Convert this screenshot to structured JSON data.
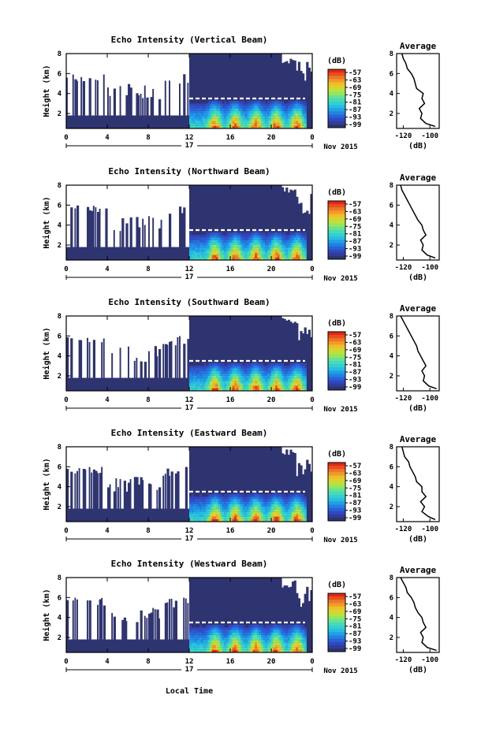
{
  "chart_data": [
    {
      "type": "heatmap",
      "title": "Echo Intensity (Vertical Beam)",
      "ylabel": "Height (km)",
      "x_ticks": [
        "0",
        "4",
        "8",
        "12",
        "16",
        "20",
        "0"
      ],
      "y_ticks": [
        "8",
        "6",
        "4",
        "2"
      ],
      "date_label": "17",
      "month_label": "Nov 2015",
      "colorbar": {
        "unit": "(dB)",
        "ticks": [
          "-57",
          "-63",
          "-69",
          "-75",
          "-81",
          "-87",
          "-93",
          "-99"
        ]
      },
      "xlim": [
        0,
        24
      ],
      "ylim": [
        0.5,
        8
      ],
      "layer_height_km": 3.5,
      "profile": {
        "title": "Average",
        "xlabel": "(dB)",
        "x_ticks": [
          "-120",
          "-100"
        ],
        "y_ticks": [
          "8",
          "6",
          "4",
          "2"
        ],
        "xlim": [
          -125,
          -93
        ],
        "ylim": [
          0.5,
          8
        ],
        "height": [
          0.7,
          1.0,
          1.5,
          2.0,
          2.5,
          3.0,
          3.5,
          4.0,
          4.5,
          5.0,
          5.5,
          6.0,
          6.5,
          7.0,
          7.5,
          8.0
        ],
        "db": [
          -96,
          -103,
          -107,
          -106,
          -108,
          -104,
          -106,
          -105,
          -110,
          -111,
          -112,
          -114,
          -117,
          -118,
          -120,
          -121
        ]
      }
    },
    {
      "type": "heatmap",
      "title": "Echo Intensity (Northward Beam)",
      "ylabel": "Height (km)",
      "x_ticks": [
        "0",
        "4",
        "8",
        "12",
        "16",
        "20",
        "0"
      ],
      "y_ticks": [
        "8",
        "6",
        "4",
        "2"
      ],
      "date_label": "17",
      "month_label": "Nov 2015",
      "colorbar": {
        "unit": "(dB)",
        "ticks": [
          "-57",
          "-63",
          "-69",
          "-75",
          "-81",
          "-87",
          "-93",
          "-99"
        ]
      },
      "xlim": [
        0,
        24
      ],
      "ylim": [
        0.5,
        8
      ],
      "layer_height_km": 3.5,
      "profile": {
        "title": "Average",
        "xlabel": "(dB)",
        "x_ticks": [
          "-120",
          "-100"
        ],
        "y_ticks": [
          "8",
          "6",
          "4",
          "2"
        ],
        "xlim": [
          -125,
          -93
        ],
        "ylim": [
          0.5,
          8
        ],
        "height": [
          0.7,
          1.0,
          1.5,
          2.0,
          2.5,
          3.0,
          3.5,
          4.0,
          4.5,
          5.0,
          5.5,
          6.0,
          6.5,
          7.0,
          7.5,
          8.0
        ],
        "db": [
          -96,
          -102,
          -106,
          -105,
          -107,
          -103,
          -105,
          -106,
          -109,
          -111,
          -113,
          -115,
          -117,
          -119,
          -121,
          -122
        ]
      }
    },
    {
      "type": "heatmap",
      "title": "Echo Intensity (Southward Beam)",
      "ylabel": "Height (km)",
      "x_ticks": [
        "0",
        "4",
        "8",
        "12",
        "16",
        "20",
        "0"
      ],
      "y_ticks": [
        "8",
        "6",
        "4",
        "2"
      ],
      "date_label": "17",
      "month_label": "Nov 2015",
      "colorbar": {
        "unit": "(dB)",
        "ticks": [
          "-57",
          "-63",
          "-69",
          "-75",
          "-81",
          "-87",
          "-93",
          "-99"
        ]
      },
      "xlim": [
        0,
        24
      ],
      "ylim": [
        0.5,
        8
      ],
      "layer_height_km": 3.5,
      "profile": {
        "title": "Average",
        "xlabel": "(dB)",
        "x_ticks": [
          "-120",
          "-100"
        ],
        "y_ticks": [
          "8",
          "6",
          "4",
          "2"
        ],
        "xlim": [
          -125,
          -93
        ],
        "ylim": [
          0.5,
          8
        ],
        "height": [
          0.7,
          1.0,
          1.5,
          2.0,
          2.5,
          3.0,
          3.5,
          4.0,
          4.5,
          5.0,
          5.5,
          6.0,
          6.5,
          7.0,
          7.5,
          8.0
        ],
        "db": [
          -95,
          -101,
          -105,
          -104,
          -106,
          -103,
          -105,
          -107,
          -109,
          -110,
          -112,
          -114,
          -116,
          -118,
          -120,
          -122
        ]
      }
    },
    {
      "type": "heatmap",
      "title": "Echo Intensity (Eastward Beam)",
      "ylabel": "Height (km)",
      "x_ticks": [
        "0",
        "4",
        "8",
        "12",
        "16",
        "20",
        "0"
      ],
      "y_ticks": [
        "8",
        "6",
        "4",
        "2"
      ],
      "date_label": "17",
      "month_label": "Nov 2015",
      "colorbar": {
        "unit": "(dB)",
        "ticks": [
          "-57",
          "-63",
          "-69",
          "-75",
          "-81",
          "-87",
          "-93",
          "-99"
        ]
      },
      "xlim": [
        0,
        24
      ],
      "ylim": [
        0.5,
        8
      ],
      "layer_height_km": 3.5,
      "profile": {
        "title": "Average",
        "xlabel": "(dB)",
        "x_ticks": [
          "-120",
          "-100"
        ],
        "y_ticks": [
          "8",
          "6",
          "4",
          "2"
        ],
        "xlim": [
          -125,
          -93
        ],
        "ylim": [
          0.5,
          8
        ],
        "height": [
          0.7,
          1.0,
          1.5,
          2.0,
          2.5,
          3.0,
          3.5,
          4.0,
          4.5,
          5.0,
          5.5,
          6.0,
          6.5,
          7.0,
          7.5,
          8.0
        ],
        "db": [
          -96,
          -101,
          -106,
          -104,
          -107,
          -103,
          -106,
          -106,
          -110,
          -111,
          -113,
          -115,
          -116,
          -119,
          -120,
          -121
        ]
      }
    },
    {
      "type": "heatmap",
      "title": "Echo Intensity (Westward Beam)",
      "ylabel": "Height (km)",
      "x_ticks": [
        "0",
        "4",
        "8",
        "12",
        "16",
        "20",
        "0"
      ],
      "y_ticks": [
        "8",
        "6",
        "4",
        "2"
      ],
      "date_label": "17",
      "month_label": "Nov 2015",
      "colorbar": {
        "unit": "(dB)",
        "ticks": [
          "-57",
          "-63",
          "-69",
          "-75",
          "-81",
          "-87",
          "-93",
          "-99"
        ]
      },
      "xlim": [
        0,
        24
      ],
      "ylim": [
        0.5,
        8
      ],
      "layer_height_km": 3.5,
      "profile": {
        "title": "Average",
        "xlabel": "(dB)",
        "x_ticks": [
          "-120",
          "-100"
        ],
        "y_ticks": [
          "8",
          "6",
          "4",
          "2"
        ],
        "xlim": [
          -125,
          -93
        ],
        "ylim": [
          0.5,
          8
        ],
        "height": [
          0.7,
          1.0,
          1.5,
          2.0,
          2.5,
          3.0,
          3.5,
          4.0,
          4.5,
          5.0,
          5.5,
          6.0,
          6.5,
          7.0,
          7.5,
          8.0
        ],
        "db": [
          -95,
          -102,
          -106,
          -105,
          -107,
          -103,
          -105,
          -106,
          -109,
          -111,
          -112,
          -114,
          -117,
          -118,
          -120,
          -122
        ]
      }
    }
  ],
  "xlabel": "Local Time",
  "colors": {
    "background": "#2e3470",
    "colormap": [
      "#2e3470",
      "#3248c8",
      "#1f8ae8",
      "#28c8e0",
      "#50e0a8",
      "#b0e840",
      "#f0c828",
      "#f07a28",
      "#e02818"
    ]
  }
}
